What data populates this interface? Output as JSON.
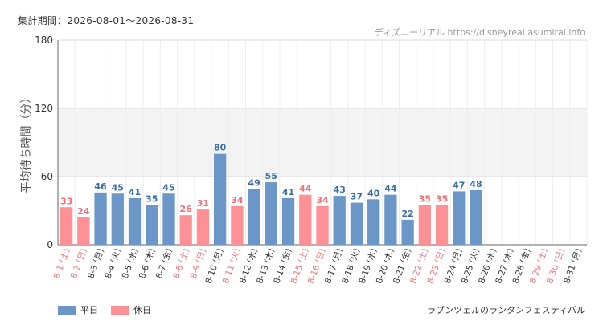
{
  "header": {
    "period_label": "集計期間：2026-08-01〜2026-08-31",
    "credit": "ディズニーリアル https://disneyreal.asumirai.info"
  },
  "footer": {
    "attraction": "ラプンツェルのランタンフェスティバル"
  },
  "colors": {
    "weekday": "#6a96c8",
    "holiday": "#ff9096",
    "weekday_text": "#3a6ea8",
    "holiday_text": "#f07278",
    "band": "#f3f3f3",
    "grid": "#dddddd"
  },
  "chart_data": {
    "type": "bar",
    "ylabel": "平均待ち時間（分）",
    "ylim": [
      0,
      180
    ],
    "yticks": [
      0,
      60,
      120,
      180
    ],
    "shaded_band": [
      60,
      120
    ],
    "legend": [
      {
        "label": "平日",
        "kind": "weekday"
      },
      {
        "label": "休日",
        "kind": "holiday"
      }
    ],
    "categories": [
      "8-1 (土)",
      "8-2 (日)",
      "8-3 (月)",
      "8-4 (火)",
      "8-5 (水)",
      "8-6 (木)",
      "8-7 (金)",
      "8-8 (土)",
      "8-9 (日)",
      "8-10 (月)",
      "8-11 (火)",
      "8-12 (水)",
      "8-13 (木)",
      "8-14 (金)",
      "8-15 (土)",
      "8-16 (日)",
      "8-17 (月)",
      "8-18 (火)",
      "8-19 (水)",
      "8-20 (木)",
      "8-21 (金)",
      "8-22 (土)",
      "8-23 (日)",
      "8-24 (月)",
      "8-25 (火)",
      "8-26 (水)",
      "8-27 (木)",
      "8-28 (金)",
      "8-29 (土)",
      "8-30 (日)",
      "8-31 (月)"
    ],
    "day_kind": [
      "holiday",
      "holiday",
      "weekday",
      "weekday",
      "weekday",
      "weekday",
      "weekday",
      "holiday",
      "holiday",
      "weekday",
      "holiday",
      "weekday",
      "weekday",
      "weekday",
      "holiday",
      "holiday",
      "weekday",
      "weekday",
      "weekday",
      "weekday",
      "weekday",
      "holiday",
      "holiday",
      "weekday",
      "weekday",
      "weekday",
      "weekday",
      "weekday",
      "holiday",
      "holiday",
      "weekday"
    ],
    "series": [
      {
        "values": [
          33,
          24,
          46,
          45,
          41,
          35,
          45,
          26,
          31,
          80,
          34,
          49,
          55,
          41,
          44,
          34,
          43,
          37,
          40,
          44,
          22,
          35,
          35,
          47,
          48,
          null,
          null,
          null,
          null,
          null,
          null
        ]
      }
    ]
  }
}
